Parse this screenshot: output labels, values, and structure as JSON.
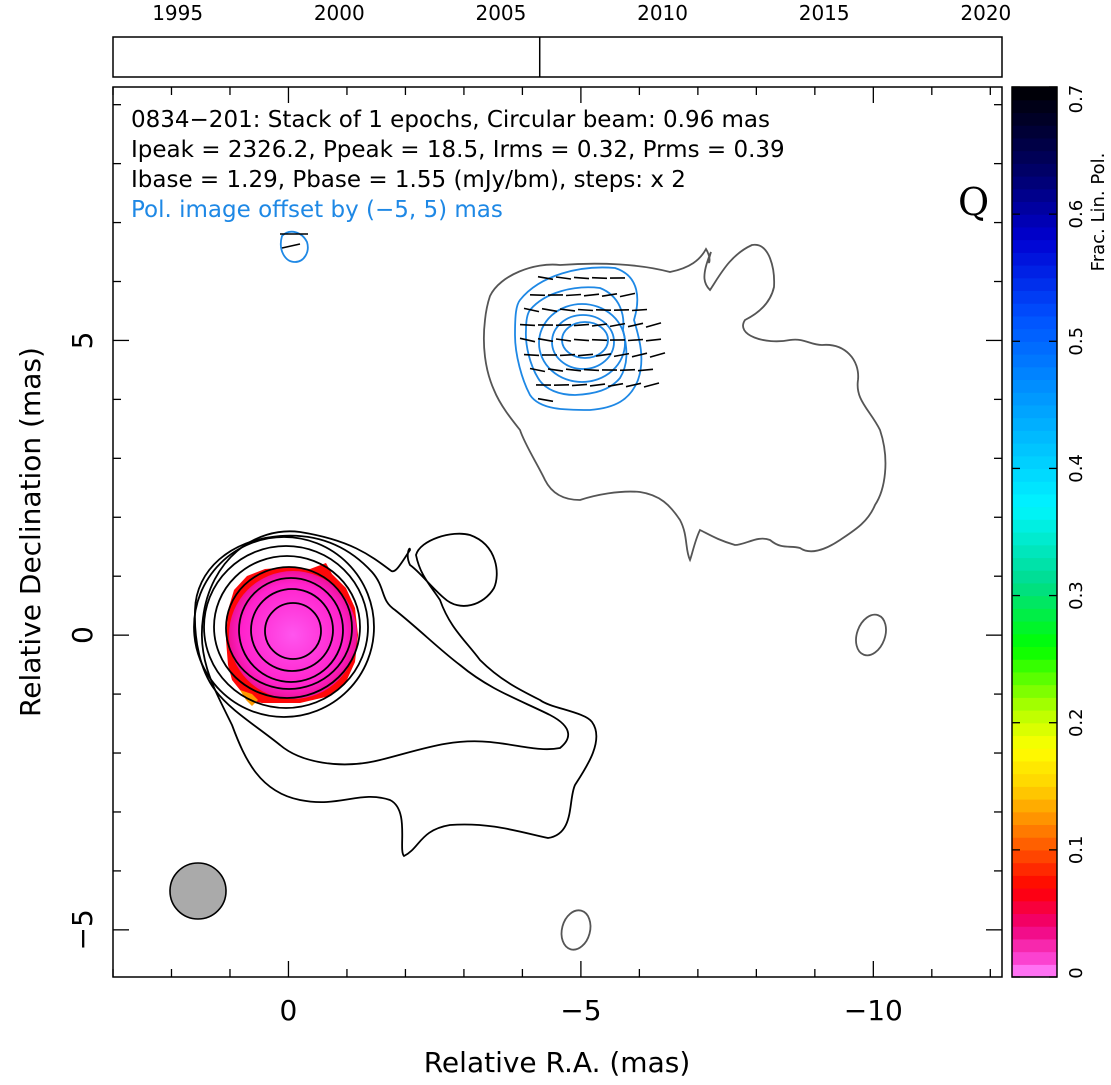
{
  "timeline": {
    "years": [
      1995,
      2000,
      2005,
      2010,
      2015,
      2020
    ],
    "year_labels": [
      "1995",
      "2000",
      "2005",
      "2010",
      "2015",
      "2020"
    ],
    "range": [
      1993,
      2020.5
    ],
    "epochs": [
      2006.2
    ]
  },
  "header": {
    "line1": "0834−201: Stack of 1 epochs, Circular beam: 0.96 mas",
    "line2": "Ipeak = 2326.2, Ppeak = 18.5, Irms = 0.32, Prms = 0.39",
    "line3": "Ibase = 1.29, Pbase = 1.55 (mJy/bm), steps: x 2",
    "line4": "Pol. image offset by (−5, 5) mas",
    "quality": "Q"
  },
  "colorbar": {
    "label": "Frac. Lin. Pol.",
    "range": [
      0,
      0.7
    ],
    "tick_values": [
      0,
      0.1,
      0.2,
      0.3,
      0.4,
      0.5,
      0.6,
      0.7
    ],
    "tick_labels": [
      "0",
      "0.1",
      "0.2",
      "0.3",
      "0.4",
      "0.5",
      "0.6",
      "0.7"
    ]
  },
  "chart_data": {
    "type": "heatmap",
    "xlabel": "Relative R.A. (mas)",
    "ylabel": "Relative Declination (mas)",
    "xlim": [
      3,
      -12.2
    ],
    "ylim": [
      -5.8,
      9.3
    ],
    "x_tick_values": [
      0,
      -5,
      -10
    ],
    "x_tick_labels": [
      "0",
      "−5",
      "−10"
    ],
    "y_tick_values": [
      -5,
      0,
      5
    ],
    "y_tick_labels": [
      "−5",
      "0",
      "5"
    ],
    "beam": {
      "x": 1.55,
      "y": -4.35,
      "diameter_mas": 0.96
    },
    "core": {
      "x": 0,
      "y": 0,
      "frac_pol": 0.01
    },
    "stokes_i_levels_mJy_per_beam": [
      1.29,
      2.58,
      5.16,
      10.3,
      20.6,
      41.3,
      82.6,
      165,
      330,
      661,
      1321
    ],
    "polarized_peak_region": {
      "x": -5.3,
      "y": 5.0
    }
  }
}
